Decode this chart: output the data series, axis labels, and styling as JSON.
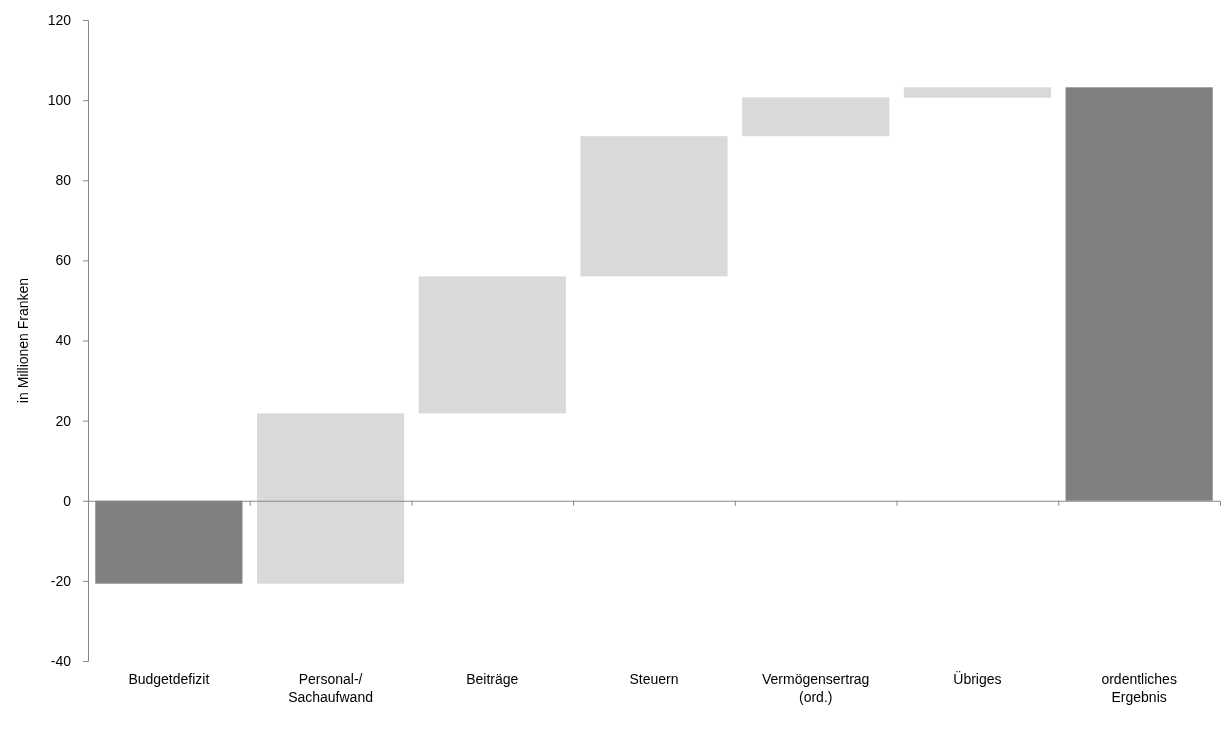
{
  "chart_data": {
    "type": "bar",
    "ylabel": "in Millionen Franken",
    "categories": [
      "Budgetdefizit",
      "Personal-/\nSachaufwand",
      "Beiträge",
      "Steuern",
      "Vermögensertrag\n(ord.)",
      "Übriges",
      "ordentliches\nErgebnis"
    ],
    "values": [
      -20.7,
      42.5,
      34.2,
      35,
      9.7,
      2.6,
      103.2
    ],
    "base": [
      0,
      -20.7,
      21.8,
      56,
      91,
      100.6,
      0
    ],
    "colors": [
      "#808080",
      "#d9d9d9",
      "#d9d9d9",
      "#d9d9d9",
      "#d9d9d9",
      "#d9d9d9",
      "#808080"
    ],
    "ylim": [
      -40,
      120
    ],
    "yticks": [
      -40,
      -20,
      0,
      20,
      40,
      60,
      80,
      100,
      120
    ],
    "grid": false
  }
}
